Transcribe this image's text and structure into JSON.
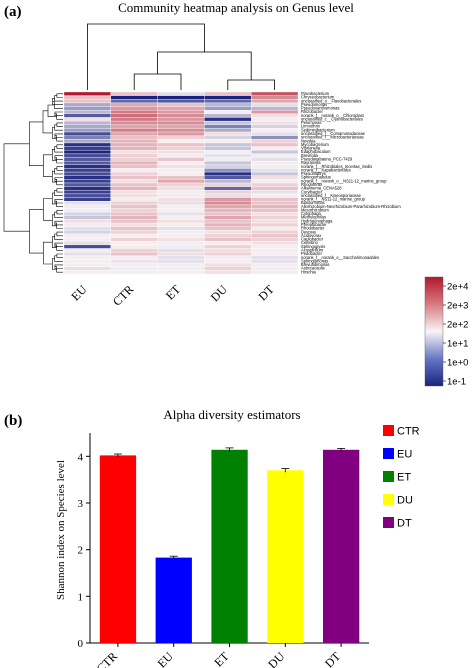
{
  "panel_a_label": "(a)",
  "panel_b_label": "(b)",
  "chart_data": [
    {
      "type": "heatmap",
      "title": "Community heatmap analysis on Genus level",
      "columns": [
        "EU",
        "CTR",
        "ET",
        "DU",
        "DT"
      ],
      "rows": [
        "Flavobacterium",
        "Chryseobacterium",
        "unclassified_o__Flavobacteriales",
        "Pseudomonas",
        "Pseudoxanthomonas",
        "Rhizobacter",
        "norank_f__norank_o__Chloroplast",
        "unclassified_c__Cyanobacteriales",
        "Pelomonas",
        "Limnothrix",
        "Sediminibacterium",
        "unclassified_f__Comamonadaceae",
        "unclassified_f__Microbacteriaceae",
        "Nevskia",
        "Mycobacterium",
        "Vibrionella",
        "Edaphobaculum",
        "Brevifolia",
        "Pseudanabaena_PCC-7429",
        "Rayranella",
        "norank_f__Rhizobiales_Incertae_Sedis",
        "norank_f__Kapabacteriales",
        "Pseudolabrys",
        "Sphingorhabdus",
        "norank_f__norank_o__NS11-12_marine_group",
        "Rhodoferax",
        "Alkalinema_CENA528",
        "Curvibacter",
        "unclassified_f__Kineosporiaceae",
        "norank_f__NS11-12_marine_group",
        "Blastomonas",
        "Allorhizobium-Neorhizobium-Pararhizobium-Rhizobium",
        "Mesorhizobium",
        "Cytophaga",
        "Methylophilus",
        "Hydrogenophaga",
        "Phreatobacter",
        "Rhodobacter",
        "Devosia",
        "Acidovorax",
        "Caulobacter",
        "Cellvibrio",
        "Sphingopyxis",
        "Azospirillum",
        "Pedobacter",
        "norank_f__norank_o__Saccharimonadales",
        "Sphingomonas",
        "Brevundimonas",
        "Asticcacaulis",
        "Hirschia"
      ],
      "values": [
        [
          3.2,
          2.0,
          1.5,
          2.0,
          2.8
        ],
        [
          2.0,
          0.1,
          0.1,
          0.1,
          2.4
        ],
        [
          2.0,
          0.6,
          0.5,
          0.6,
          2.2
        ],
        [
          1.1,
          2.2,
          2.0,
          1.2,
          1.5
        ],
        [
          1.0,
          2.3,
          2.2,
          1.0,
          1.2
        ],
        [
          1.2,
          2.5,
          2.3,
          1.6,
          2.3
        ],
        [
          0.5,
          2.6,
          2.4,
          1.2,
          1.8
        ],
        [
          1.8,
          2.5,
          2.3,
          0.2,
          1.6
        ],
        [
          1.2,
          2.4,
          2.4,
          1.3,
          1.8
        ],
        [
          1.1,
          2.2,
          2.2,
          0.8,
          1.4
        ],
        [
          1.0,
          2.5,
          2.4,
          1.1,
          1.7
        ],
        [
          0.4,
          2.2,
          2.3,
          1.8,
          1.5
        ],
        [
          0.8,
          2.0,
          1.9,
          1.4,
          0.9
        ],
        [
          1.1,
          2.1,
          1.7,
          1.7,
          1.9
        ],
        [
          0.2,
          2.1,
          2.0,
          1.3,
          2.0
        ],
        [
          0.3,
          2.1,
          1.9,
          1.3,
          1.7
        ],
        [
          0.1,
          1.8,
          1.8,
          1.6,
          1.3
        ],
        [
          0.4,
          1.9,
          1.6,
          1.5,
          1.6
        ],
        [
          0.5,
          1.9,
          2.0,
          1.6,
          1.5
        ],
        [
          0.5,
          2.1,
          1.6,
          1.3,
          1.7
        ],
        [
          0.2,
          2.0,
          1.8,
          1.4,
          1.6
        ],
        [
          0.3,
          1.7,
          1.7,
          0.9,
          1.5
        ],
        [
          0.4,
          1.9,
          1.7,
          0.2,
          1.3
        ],
        [
          0.2,
          2.0,
          2.0,
          0.5,
          1.8
        ],
        [
          0.3,
          1.8,
          2.2,
          1.2,
          1.6
        ],
        [
          0.5,
          2.0,
          1.9,
          1.9,
          1.9
        ],
        [
          0.2,
          2.1,
          1.8,
          0.6,
          2.0
        ],
        [
          0.3,
          1.8,
          1.7,
          1.9,
          1.5
        ],
        [
          0.4,
          1.8,
          1.6,
          1.5,
          1.7
        ],
        [
          0.3,
          1.7,
          1.8,
          2.3,
          2.0
        ],
        [
          1.5,
          1.9,
          1.5,
          2.4,
          2.0
        ],
        [
          1.6,
          2.0,
          1.7,
          2.2,
          2.1
        ],
        [
          1.6,
          1.9,
          1.7,
          2.1,
          2.0
        ],
        [
          1.4,
          2.0,
          1.5,
          2.0,
          1.8
        ],
        [
          1.3,
          2.1,
          1.7,
          2.2,
          1.9
        ],
        [
          1.8,
          2.0,
          1.8,
          2.0,
          1.8
        ],
        [
          1.6,
          1.8,
          1.7,
          2.1,
          1.9
        ],
        [
          1.5,
          2.0,
          1.5,
          2.0,
          1.7
        ],
        [
          1.4,
          1.9,
          1.6,
          1.8,
          1.9
        ],
        [
          1.6,
          1.7,
          1.7,
          1.9,
          2.0
        ],
        [
          1.7,
          1.9,
          1.8,
          2.0,
          1.9
        ],
        [
          1.5,
          1.7,
          1.6,
          1.7,
          1.8
        ],
        [
          0.4,
          1.7,
          1.6,
          1.9,
          1.7
        ],
        [
          1.6,
          1.9,
          1.5,
          1.8,
          1.6
        ],
        [
          1.5,
          2.0,
          1.8,
          1.9,
          1.7
        ],
        [
          1.7,
          1.6,
          1.5,
          1.6,
          1.5
        ],
        [
          1.6,
          1.8,
          1.5,
          1.7,
          1.5
        ],
        [
          1.7,
          1.6,
          1.6,
          1.8,
          1.6
        ],
        [
          1.5,
          1.6,
          1.6,
          1.9,
          1.7
        ],
        [
          1.7,
          1.6,
          1.7,
          1.8,
          1.6
        ]
      ],
      "scale_min": 0.1,
      "scale_max": 3.2,
      "colorbar_ticks": [
        "2e+4",
        "2e+3",
        "2e+2",
        "1e+1",
        "1e+0",
        "1e-1"
      ],
      "colors": {
        "low": "#1a237e",
        "mid": "#f8f4f6",
        "high": "#b2182b"
      }
    },
    {
      "type": "bar",
      "title": "Alpha diversity estimators",
      "categories": [
        "CTR",
        "EU",
        "ET",
        "DU",
        "DT"
      ],
      "values": [
        4.02,
        1.83,
        4.14,
        3.7,
        4.14
      ],
      "errors": [
        0.03,
        0.03,
        0.04,
        0.04,
        0.03
      ],
      "colors": [
        "#ff0000",
        "#0000ff",
        "#008000",
        "#ffff00",
        "#800080"
      ],
      "ylabel": "Shannon index on Species level",
      "ylim": [
        0,
        4.5
      ],
      "yticks": [
        "0",
        "1",
        "2",
        "3",
        "4"
      ],
      "legend": [
        "CTR",
        "EU",
        "ET",
        "DU",
        "DT"
      ],
      "legend_position": "right"
    }
  ]
}
